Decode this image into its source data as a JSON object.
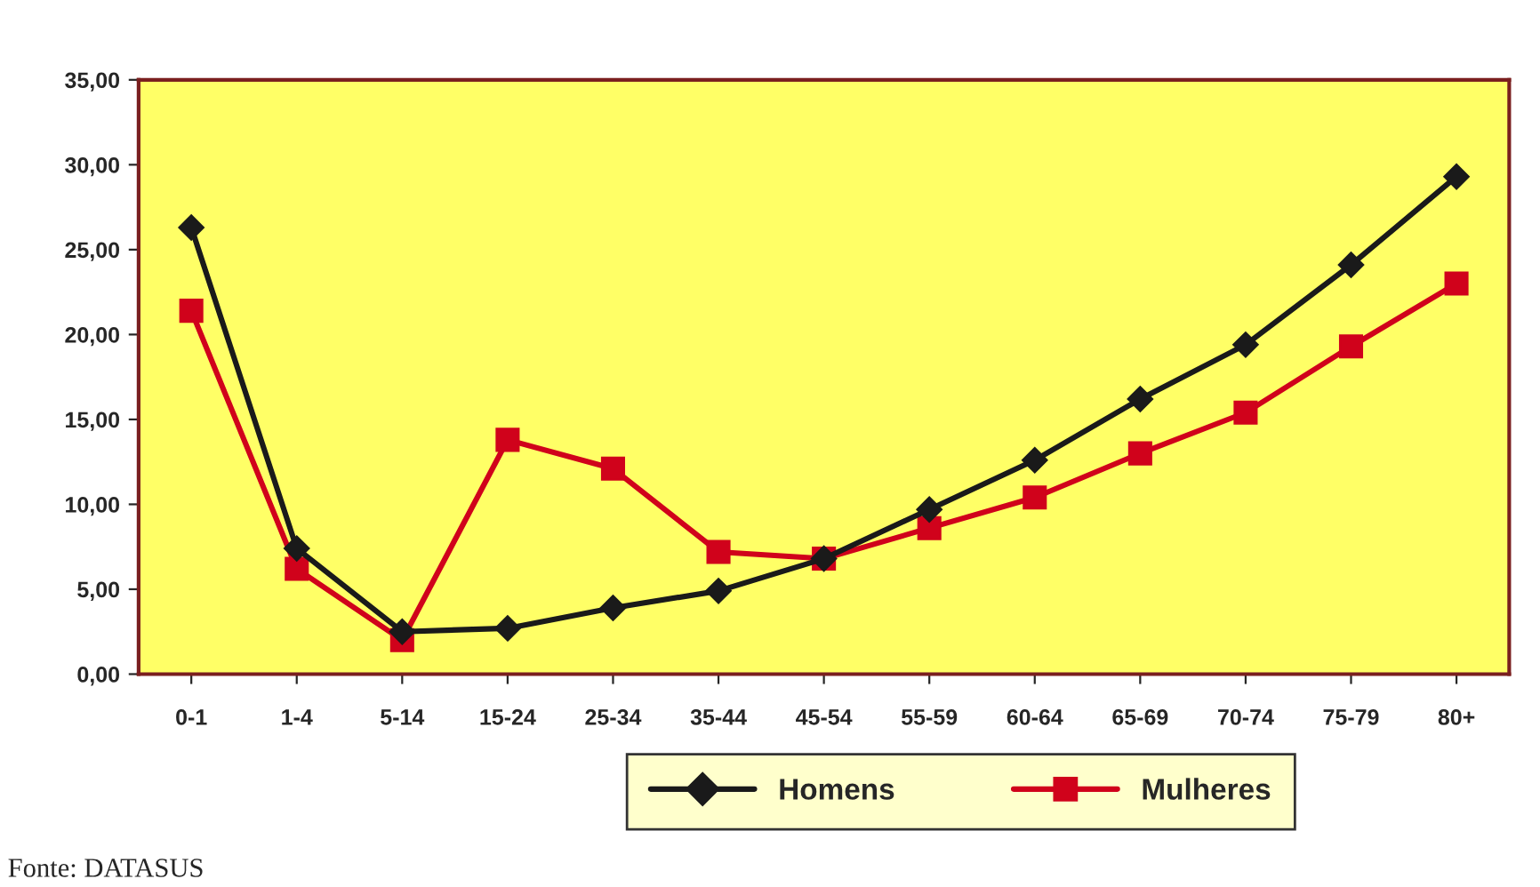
{
  "chart_data": {
    "type": "line",
    "categories": [
      "0-1",
      "1-4",
      "5-14",
      "15-24",
      "25-34",
      "35-44",
      "45-54",
      "55-59",
      "60-64",
      "65-69",
      "70-74",
      "75-79",
      "80+"
    ],
    "series": [
      {
        "name": "Homens",
        "color": "#1a1a1a",
        "marker": "diamond",
        "values": [
          26.3,
          7.4,
          2.5,
          2.7,
          3.9,
          4.9,
          6.8,
          9.7,
          12.6,
          16.2,
          19.4,
          24.1,
          29.3
        ]
      },
      {
        "name": "Mulheres",
        "color": "#d0021b",
        "marker": "square",
        "values": [
          21.4,
          6.2,
          2.0,
          13.8,
          12.1,
          7.2,
          6.8,
          8.6,
          10.4,
          13.0,
          15.4,
          19.3,
          23.0
        ]
      }
    ],
    "ylim": [
      0,
      35
    ],
    "yticks": [
      {
        "value": 0,
        "label": "0,00"
      },
      {
        "value": 5,
        "label": "5,00"
      },
      {
        "value": 10,
        "label": "10,00"
      },
      {
        "value": 15,
        "label": "15,00"
      },
      {
        "value": 20,
        "label": "20,00"
      },
      {
        "value": 25,
        "label": "25,00"
      },
      {
        "value": 30,
        "label": "30,00"
      },
      {
        "value": 35,
        "label": "35,00"
      }
    ],
    "grid": false,
    "legend": "bottom",
    "line_style": "solid",
    "annotations": [
      "Fonte: DATASUS"
    ]
  }
}
